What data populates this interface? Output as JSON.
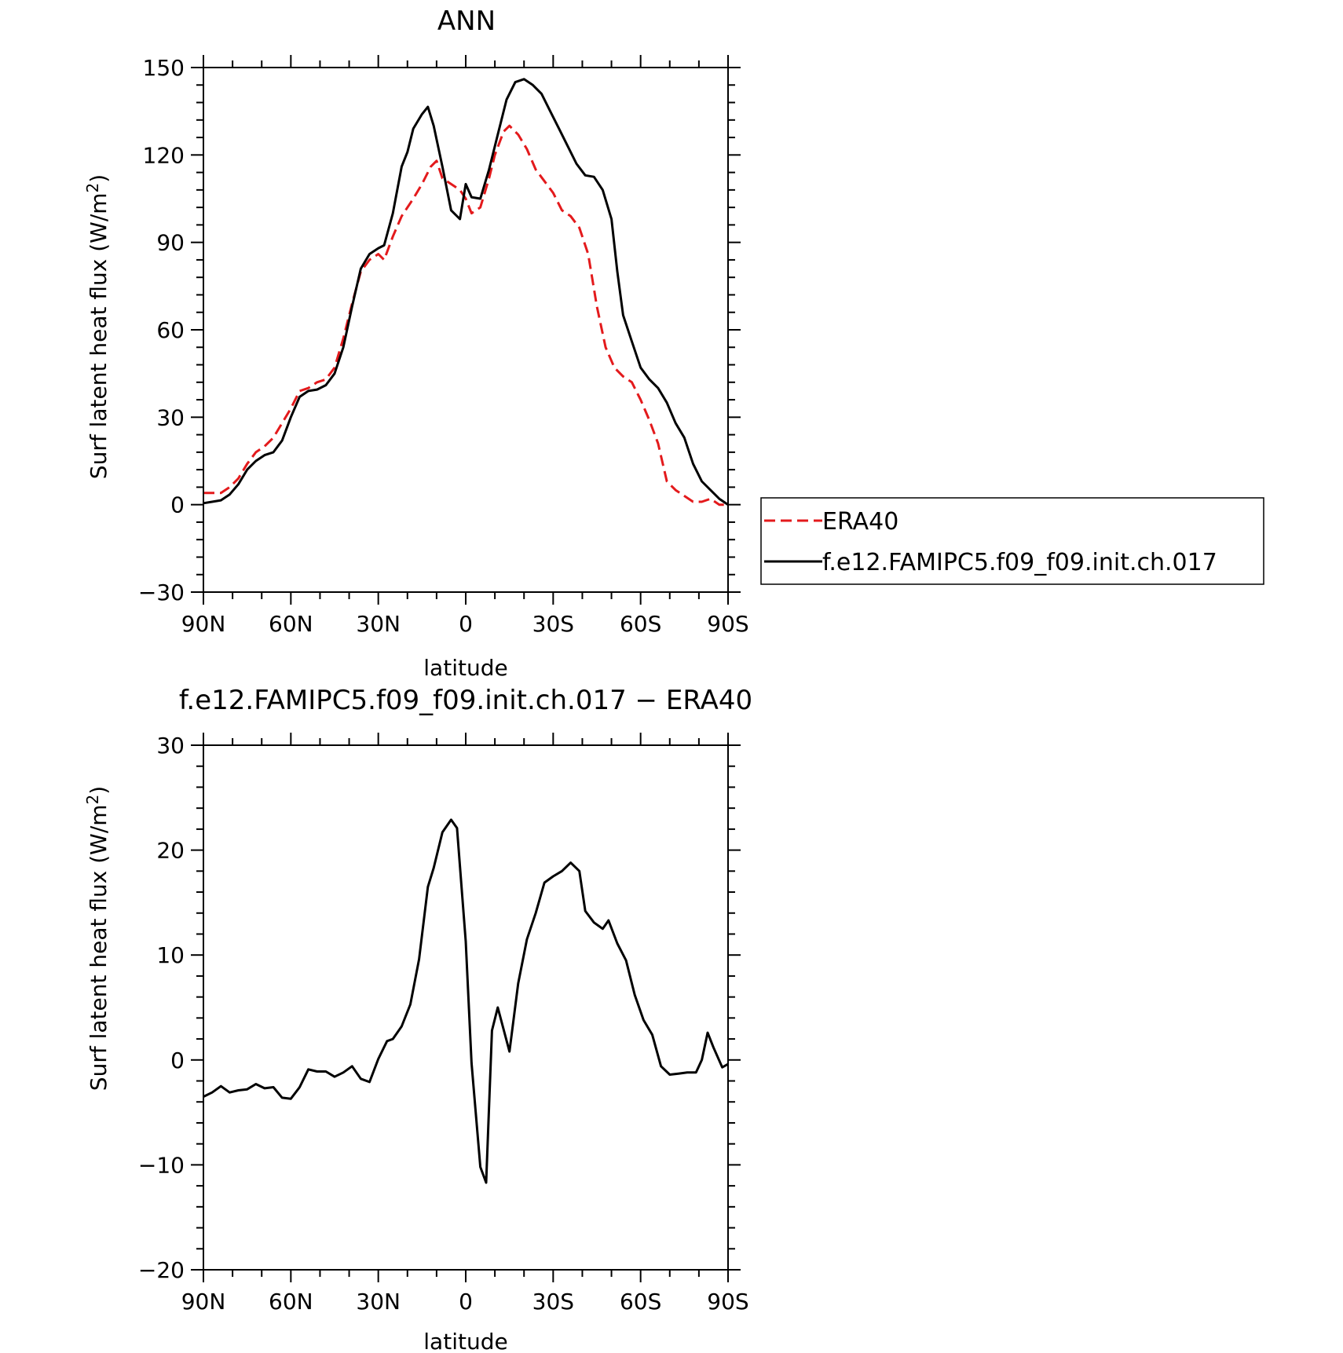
{
  "chart_data": [
    {
      "type": "line",
      "title": "ANN",
      "xlabel": "latitude",
      "ylabel": "Surf latent heat flux (W/m²)",
      "xlim": [
        90,
        -90
      ],
      "ylim": [
        -30,
        150
      ],
      "x_ticks": [
        90,
        60,
        30,
        0,
        -30,
        -60,
        -90
      ],
      "x_tick_labels": [
        "90N",
        "60N",
        "30N",
        "0",
        "30S",
        "60S",
        "90S"
      ],
      "y_ticks": [
        150,
        120,
        90,
        60,
        30,
        0,
        -30
      ],
      "y_tick_labels": [
        "150",
        "120",
        "90",
        "60",
        "30",
        "0",
        "−30"
      ],
      "legend_position": "right",
      "series": [
        {
          "name": "ERA40",
          "color": "#e31a1c",
          "dash": "dashed",
          "points": [
            [
              90,
              4
            ],
            [
              87,
              4
            ],
            [
              84,
              4
            ],
            [
              81,
              6
            ],
            [
              78,
              9
            ],
            [
              75,
              14
            ],
            [
              72,
              18
            ],
            [
              69,
              20
            ],
            [
              66,
              23
            ],
            [
              63,
              28
            ],
            [
              60,
              33
            ],
            [
              57,
              39
            ],
            [
              54,
              40
            ],
            [
              51,
              42
            ],
            [
              48,
              43
            ],
            [
              45,
              47
            ],
            [
              42,
              57
            ],
            [
              39,
              69
            ],
            [
              36,
              80
            ],
            [
              33,
              84
            ],
            [
              30,
              86
            ],
            [
              28,
              84
            ],
            [
              25,
              92
            ],
            [
              22,
              99
            ],
            [
              18,
              105
            ],
            [
              15,
              110
            ],
            [
              12,
              116
            ],
            [
              10,
              118
            ],
            [
              8,
              112
            ],
            [
              5,
              110
            ],
            [
              2,
              108
            ],
            [
              0,
              105
            ],
            [
              -2,
              100
            ],
            [
              -5,
              102
            ],
            [
              -8,
              112
            ],
            [
              -10,
              120
            ],
            [
              -13,
              128
            ],
            [
              -15,
              130
            ],
            [
              -18,
              127
            ],
            [
              -21,
              122
            ],
            [
              -24,
              115
            ],
            [
              -27,
              111
            ],
            [
              -30,
              107
            ],
            [
              -33,
              101
            ],
            [
              -36,
              99
            ],
            [
              -39,
              95
            ],
            [
              -42,
              86
            ],
            [
              -45,
              68
            ],
            [
              -48,
              54
            ],
            [
              -51,
              47
            ],
            [
              -54,
              44
            ],
            [
              -57,
              42
            ],
            [
              -60,
              36
            ],
            [
              -63,
              29
            ],
            [
              -66,
              21
            ],
            [
              -69,
              8
            ],
            [
              -72,
              5
            ],
            [
              -75,
              3
            ],
            [
              -78,
              1
            ],
            [
              -81,
              1
            ],
            [
              -84,
              2
            ],
            [
              -87,
              0
            ],
            [
              -90,
              0
            ]
          ]
        },
        {
          "name": "f.e12.FAMIPC5.f09_f09.init.ch.017",
          "color": "#000000",
          "dash": "solid",
          "points": [
            [
              90,
              0.5
            ],
            [
              87,
              1
            ],
            [
              84,
              1.5
            ],
            [
              81,
              3.5
            ],
            [
              78,
              7
            ],
            [
              75,
              12
            ],
            [
              72,
              15
            ],
            [
              69,
              17
            ],
            [
              66,
              18
            ],
            [
              63,
              22
            ],
            [
              60,
              30
            ],
            [
              57,
              37
            ],
            [
              54,
              39
            ],
            [
              51,
              39.5
            ],
            [
              48,
              41
            ],
            [
              45,
              45
            ],
            [
              42,
              54
            ],
            [
              39,
              68
            ],
            [
              36,
              81
            ],
            [
              33,
              86
            ],
            [
              30,
              88
            ],
            [
              28,
              89
            ],
            [
              25,
              100
            ],
            [
              22,
              116
            ],
            [
              20,
              121
            ],
            [
              18,
              129
            ],
            [
              15,
              134
            ],
            [
              13,
              136.5
            ],
            [
              11,
              130
            ],
            [
              8,
              116
            ],
            [
              5,
              101
            ],
            [
              2,
              98
            ],
            [
              0,
              110
            ],
            [
              -2,
              105.5
            ],
            [
              -5,
              105
            ],
            [
              -8,
              115
            ],
            [
              -11,
              127
            ],
            [
              -14,
              139
            ],
            [
              -17,
              145
            ],
            [
              -20,
              146
            ],
            [
              -23,
              144
            ],
            [
              -26,
              141
            ],
            [
              -29,
              135
            ],
            [
              -32,
              129
            ],
            [
              -35,
              123
            ],
            [
              -38,
              117
            ],
            [
              -41,
              113
            ],
            [
              -44,
              112.5
            ],
            [
              -47,
              108
            ],
            [
              -50,
              98
            ],
            [
              -52,
              80
            ],
            [
              -54,
              65
            ],
            [
              -57,
              56
            ],
            [
              -60,
              47
            ],
            [
              -63,
              43
            ],
            [
              -66,
              40
            ],
            [
              -69,
              35
            ],
            [
              -72,
              28
            ],
            [
              -75,
              23
            ],
            [
              -78,
              14
            ],
            [
              -81,
              8
            ],
            [
              -84,
              5
            ],
            [
              -87,
              2
            ],
            [
              -90,
              0
            ]
          ]
        }
      ]
    },
    {
      "type": "line",
      "title": "f.e12.FAMIPC5.f09_f09.init.ch.017 − ERA40",
      "xlabel": "latitude",
      "ylabel": "Surf latent heat flux (W/m²)",
      "xlim": [
        90,
        -90
      ],
      "ylim": [
        -20,
        30
      ],
      "x_ticks": [
        90,
        60,
        30,
        0,
        -30,
        -60,
        -90
      ],
      "x_tick_labels": [
        "90N",
        "60N",
        "30N",
        "0",
        "30S",
        "60S",
        "90S"
      ],
      "y_ticks": [
        30,
        20,
        10,
        0,
        -10,
        -20
      ],
      "y_tick_labels": [
        "30",
        "20",
        "10",
        "0",
        "−10",
        "−20"
      ],
      "series": [
        {
          "name": "",
          "color": "#000000",
          "dash": "solid",
          "points": [
            [
              90,
              -3.5
            ],
            [
              87,
              -3.1
            ],
            [
              84,
              -2.5
            ],
            [
              81,
              -3.1
            ],
            [
              78,
              -2.9
            ],
            [
              75,
              -2.8
            ],
            [
              72,
              -2.3
            ],
            [
              69,
              -2.7
            ],
            [
              66,
              -2.6
            ],
            [
              63,
              -3.6
            ],
            [
              60,
              -3.7
            ],
            [
              57,
              -2.6
            ],
            [
              54,
              -0.9
            ],
            [
              51,
              -1.1
            ],
            [
              48,
              -1.1
            ],
            [
              45,
              -1.6
            ],
            [
              42,
              -1.2
            ],
            [
              39,
              -0.6
            ],
            [
              36,
              -1.8
            ],
            [
              33,
              -2.1
            ],
            [
              30,
              0.1
            ],
            [
              27,
              1.8
            ],
            [
              25,
              2
            ],
            [
              22,
              3.2
            ],
            [
              19,
              5.3
            ],
            [
              16,
              9.6
            ],
            [
              13,
              16.5
            ],
            [
              11,
              18.3
            ],
            [
              8,
              21.7
            ],
            [
              5,
              22.9
            ],
            [
              3,
              22.1
            ],
            [
              0,
              11.3
            ],
            [
              -2,
              -0.3
            ],
            [
              -5,
              -10.2
            ],
            [
              -7,
              -11.7
            ],
            [
              -9,
              2.8
            ],
            [
              -11,
              5
            ],
            [
              -15,
              0.8
            ],
            [
              -18,
              7.3
            ],
            [
              -21,
              11.5
            ],
            [
              -24,
              14
            ],
            [
              -27,
              16.9
            ],
            [
              -30,
              17.5
            ],
            [
              -33,
              18
            ],
            [
              -36,
              18.8
            ],
            [
              -39,
              18
            ],
            [
              -41,
              14.2
            ],
            [
              -44,
              13.1
            ],
            [
              -47,
              12.5
            ],
            [
              -49,
              13.3
            ],
            [
              -52,
              11.1
            ],
            [
              -55,
              9.5
            ],
            [
              -58,
              6.2
            ],
            [
              -61,
              3.8
            ],
            [
              -64,
              2.4
            ],
            [
              -67,
              -0.6
            ],
            [
              -70,
              -1.4
            ],
            [
              -73,
              -1.3
            ],
            [
              -76,
              -1.2
            ],
            [
              -79,
              -1.2
            ],
            [
              -81,
              0
            ],
            [
              -83,
              2.6
            ],
            [
              -85,
              1.2
            ],
            [
              -88,
              -0.7
            ],
            [
              -90,
              -0.4
            ]
          ]
        }
      ]
    }
  ],
  "page": {
    "ylabel_main": "Surf latent heat flux (W/m",
    "ylabel_sup": "2",
    "ylabel_close": ")"
  }
}
